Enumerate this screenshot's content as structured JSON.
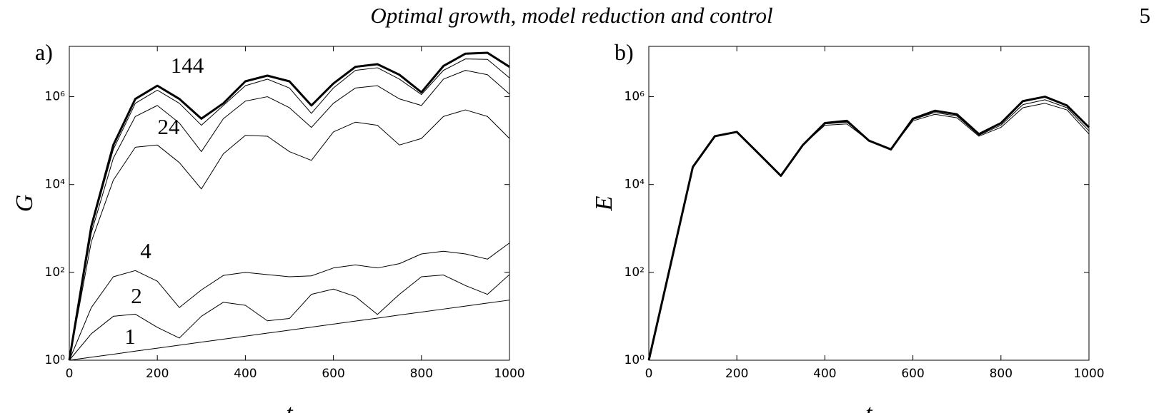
{
  "header": {
    "title": "Optimal growth, model reduction and control",
    "page": "5"
  },
  "chart_data": [
    {
      "type": "line",
      "panel_label": "a)",
      "xlabel": "t",
      "ylabel": "G",
      "log_y": true,
      "color": "#000000",
      "xlim": [
        0,
        1000
      ],
      "ylim": [
        1,
        14000000
      ],
      "xticks": [
        0,
        200,
        400,
        600,
        800,
        1000
      ],
      "yticks": [
        {
          "value": 1,
          "label": "10⁰"
        },
        {
          "value": 100,
          "label": "10²"
        },
        {
          "value": 10000,
          "label": "10⁴"
        },
        {
          "value": 1000000,
          "label": "10⁶"
        }
      ],
      "x": [
        0,
        50,
        100,
        150,
        200,
        250,
        300,
        350,
        400,
        450,
        500,
        550,
        600,
        650,
        700,
        750,
        800,
        850,
        900,
        950,
        1000
      ],
      "series": [
        {
          "name": "1",
          "linewidth": 1,
          "values": [
            1,
            1.17,
            1.37,
            1.61,
            1.88,
            2.2,
            2.58,
            3.02,
            3.53,
            4.14,
            4.84,
            5.67,
            6.64,
            7.78,
            9.1,
            10.7,
            12.5,
            14.6,
            17.1,
            20.0,
            23.4
          ]
        },
        {
          "name": "2",
          "linewidth": 1,
          "values": [
            1,
            4.0,
            10,
            11.2,
            5.6,
            3.2,
            10,
            20.9,
            17.8,
            7.9,
            8.9,
            31.6,
            41.7,
            28.2,
            11,
            31.6,
            79.4,
            87.1,
            50.1,
            31.6,
            89.1
          ]
        },
        {
          "name": "4",
          "linewidth": 1,
          "values": [
            1,
            15.8,
            79.4,
            110,
            63.1,
            15.8,
            39.8,
            85.1,
            100,
            89.1,
            79.4,
            83.2,
            126,
            148,
            126,
            158,
            263,
            302,
            263,
            200,
            468
          ]
        },
        {
          "name": "24",
          "linewidth": 1,
          "values": [
            1,
            500,
            12600,
            70800,
            79400,
            31600,
            7940,
            50100,
            132000,
            126000,
            56200,
            35500,
            158000,
            263000,
            224000,
            79400,
            112000,
            355000,
            501000,
            355000,
            112000
          ]
        },
        {
          "linewidth": 1,
          "values": [
            1,
            794,
            39800,
            355000,
            631000,
            251000,
            56200,
            316000,
            794000,
            1000000,
            562000,
            200000,
            708000,
            1580000,
            1780000,
            891000,
            631000,
            2510000,
            3980000,
            3160000,
            1150000
          ]
        },
        {
          "linewidth": 1,
          "values": [
            1,
            1000,
            63100,
            708000,
            1410000,
            708000,
            224000,
            631000,
            1780000,
            2510000,
            1580000,
            417000,
            1580000,
            3980000,
            4570000,
            2510000,
            1120000,
            3980000,
            7240000,
            7080000,
            2690000
          ]
        },
        {
          "name": "144",
          "linewidth": 3,
          "values": [
            1,
            1120,
            79400,
            891000,
            1780000,
            891000,
            316000,
            708000,
            2240000,
            3020000,
            2240000,
            631000,
            2000000,
            4790000,
            5500000,
            3160000,
            1260000,
            5010000,
            9550000,
            10000000,
            4790000
          ]
        }
      ]
    },
    {
      "type": "line",
      "panel_label": "b)",
      "xlabel": "t",
      "ylabel": "E",
      "log_y": true,
      "color": "#000000",
      "xlim": [
        0,
        1000
      ],
      "ylim": [
        1,
        14000000
      ],
      "xticks": [
        0,
        200,
        400,
        600,
        800,
        1000
      ],
      "yticks": [
        {
          "value": 1,
          "label": "10⁰"
        },
        {
          "value": 100,
          "label": "10²"
        },
        {
          "value": 10000,
          "label": "10⁴"
        },
        {
          "value": 1000000,
          "label": "10⁶"
        }
      ],
      "x": [
        0,
        50,
        100,
        150,
        200,
        250,
        300,
        350,
        400,
        450,
        500,
        550,
        600,
        650,
        700,
        750,
        800,
        850,
        900,
        950,
        1000
      ],
      "series": [
        {
          "linewidth": 1,
          "values": [
            1,
            158,
            25100,
            126000,
            158000,
            50100,
            15800,
            79400,
            224000,
            240000,
            100000,
            63100,
            282000,
            398000,
            331000,
            126000,
            200000,
            562000,
            708000,
            501000,
            141000
          ]
        },
        {
          "linewidth": 1,
          "values": [
            1,
            158,
            25100,
            126000,
            158000,
            50100,
            15800,
            79400,
            240000,
            263000,
            100000,
            63100,
            302000,
            437000,
            363000,
            132000,
            224000,
            661000,
            851000,
            562000,
            166000
          ]
        },
        {
          "linewidth": 3,
          "values": [
            1,
            158,
            25100,
            126000,
            158000,
            50100,
            15800,
            79400,
            251000,
            282000,
            100000,
            63100,
            316000,
            479000,
            398000,
            141000,
            251000,
            794000,
            1000000,
            631000,
            200000
          ]
        }
      ]
    }
  ]
}
